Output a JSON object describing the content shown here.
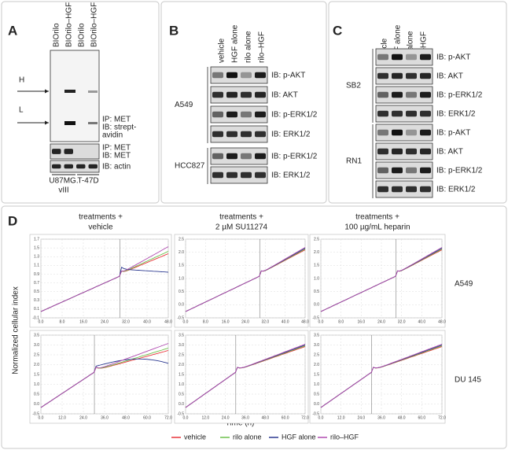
{
  "panel_a": {
    "label": "A",
    "lanes": [
      "BIOrilo",
      "BIOrilo–HGF",
      "BIOrilo",
      "BIOrilo–HGF"
    ],
    "markers": [
      "H",
      "L"
    ],
    "blots": [
      "IP: MET",
      "IB: strept-",
      "avidin",
      "IP: MET",
      "IB: MET",
      "IB: actin"
    ],
    "cell_lines": [
      "U87MG.",
      "vIII",
      "T-47D"
    ]
  },
  "panel_b": {
    "label": "B",
    "lanes": [
      "vehicle",
      "HGF alone",
      "rilo alone",
      "rilo–HGF"
    ],
    "groups": [
      {
        "name": "A549",
        "blots": [
          "IB: p-AKT",
          "IB: AKT",
          "IB: p-ERK1/2",
          "IB: ERK1/2"
        ]
      },
      {
        "name": "HCC827",
        "blots": [
          "IB: p-ERK1/2",
          "IB: ERK1/2"
        ]
      }
    ]
  },
  "panel_c": {
    "label": "C",
    "lanes": [
      "vehicle",
      "HGF alone",
      "rilo alone",
      "rilo–HGF"
    ],
    "groups": [
      {
        "name": "SB2",
        "blots": [
          "IB: p-AKT",
          "IB: AKT",
          "IB: p-ERK1/2",
          "IB: ERK1/2"
        ]
      },
      {
        "name": "RN1",
        "blots": [
          "IB: p-AKT",
          "IB: AKT",
          "IB: p-ERK1/2",
          "IB: ERK1/2"
        ]
      }
    ]
  },
  "panel_d": {
    "label": "D",
    "columns": [
      {
        "title": [
          "treatments +",
          "vehicle"
        ]
      },
      {
        "title": [
          "treatments +",
          "2 µM SU11274"
        ]
      },
      {
        "title": [
          "treatments +",
          "100 µg/mL heparin"
        ]
      }
    ],
    "rows": [
      "A549",
      "DU 145"
    ],
    "y_label": "Normalized cellular index",
    "x_label": "Time (h)",
    "charts": [
      [
        {
          "yticks": [
            "1.7",
            "1.5",
            "1.3",
            "1.1",
            "0.9",
            "0.7",
            "0.5",
            "0.3",
            "0.1",
            "-0.1"
          ],
          "xticks": [
            "0.0",
            "8.0",
            "16.0",
            "24.0",
            "32.0",
            "40.0",
            "48.0"
          ]
        },
        {
          "yticks": [
            "2.5",
            "2.0",
            "1.5",
            "1.0",
            "0.5",
            "0.0",
            "-0.5"
          ],
          "xticks": [
            "0.0",
            "8.0",
            "16.0",
            "24.0",
            "32.0",
            "40.0",
            "48.0"
          ]
        },
        {
          "yticks": [
            "2.5",
            "2.0",
            "1.5",
            "1.0",
            "0.5",
            "0.0",
            "-0.5"
          ],
          "xticks": [
            "0.0",
            "8.0",
            "16.0",
            "24.0",
            "32.0",
            "40.0",
            "48.0"
          ]
        }
      ],
      [
        {
          "yticks": [
            "3.5",
            "3.0",
            "2.5",
            "2.0",
            "1.5",
            "1.0",
            "0.5",
            "0.0",
            "-0.5"
          ],
          "xticks": [
            "0.0",
            "12.0",
            "24.0",
            "36.0",
            "48.0",
            "60.0",
            "72.0"
          ]
        },
        {
          "yticks": [
            "3.5",
            "3.0",
            "2.5",
            "2.0",
            "1.5",
            "1.0",
            "0.5",
            "0.0",
            "-0.5"
          ],
          "xticks": [
            "0.0",
            "12.0",
            "24.0",
            "36.0",
            "48.0",
            "60.0",
            "72.0"
          ]
        },
        {
          "yticks": [
            "3.5",
            "3.0",
            "2.5",
            "2.0",
            "1.5",
            "1.0",
            "0.5",
            "0.0",
            "-0.5"
          ],
          "xticks": [
            "0.0",
            "12.0",
            "24.0",
            "36.0",
            "48.0",
            "60.0",
            "72.0"
          ]
        }
      ]
    ],
    "legend": [
      {
        "name": "vehicle",
        "color": "#e8343a"
      },
      {
        "name": "rilo alone",
        "color": "#6cc04a"
      },
      {
        "name": "HGF alone",
        "color": "#2b3990"
      },
      {
        "name": "rilo–HGF",
        "color": "#b04ab0"
      }
    ]
  }
}
